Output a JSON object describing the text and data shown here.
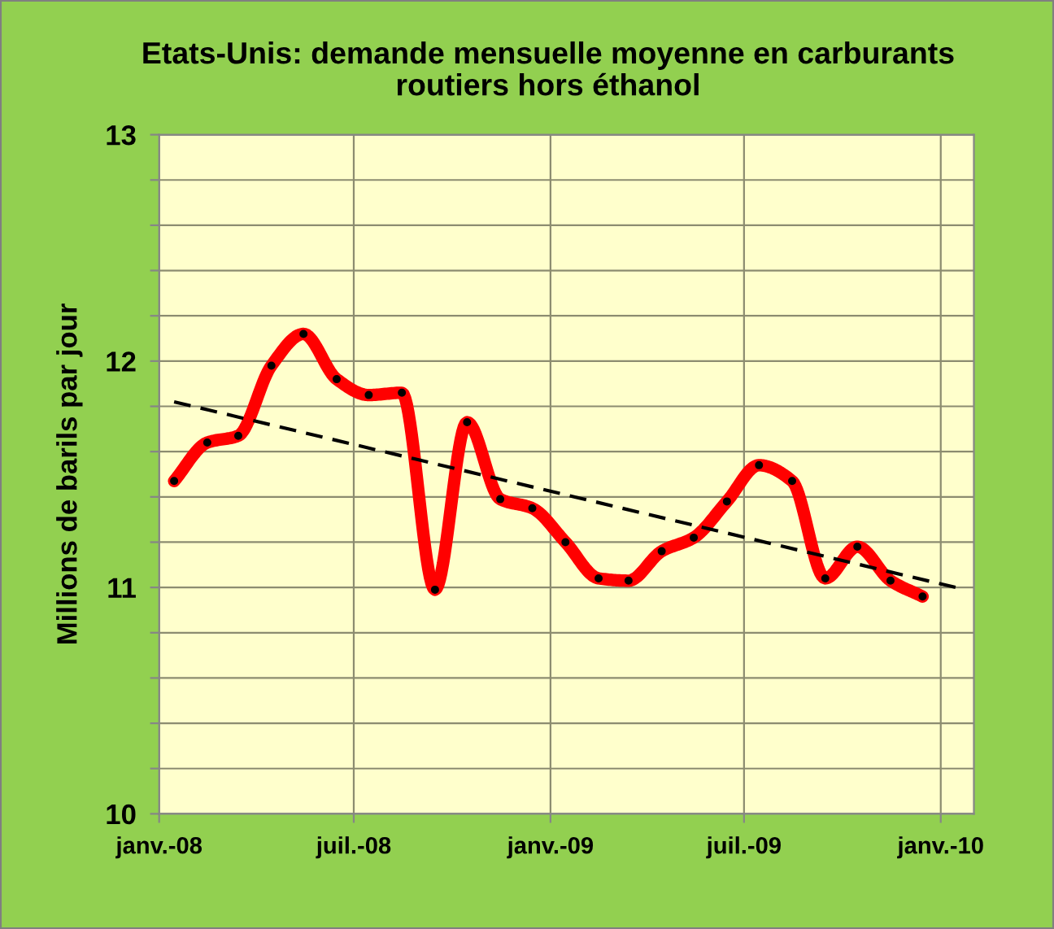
{
  "chart_data": {
    "type": "line",
    "title": "Etats-Unis: demande mensuelle moyenne en carburants\nroutiers hors éthanol",
    "ylabel": "Millions de barils par jour",
    "x": [
      "2008-01-15",
      "2008-02-15",
      "2008-03-15",
      "2008-04-15",
      "2008-05-15",
      "2008-06-15",
      "2008-07-15",
      "2008-08-15",
      "2008-09-15",
      "2008-10-15",
      "2008-11-15",
      "2008-12-15",
      "2009-01-15",
      "2009-02-15",
      "2009-03-15",
      "2009-04-15",
      "2009-05-15",
      "2009-06-15",
      "2009-07-15",
      "2009-08-15",
      "2009-09-15",
      "2009-10-15",
      "2009-11-15",
      "2009-12-15"
    ],
    "series": [
      {
        "color": "#ff0000",
        "marker": "circle",
        "line_style": "solid",
        "values": [
          11.47,
          11.64,
          11.67,
          11.98,
          12.12,
          11.92,
          11.85,
          11.86,
          10.99,
          11.73,
          11.39,
          11.35,
          11.2,
          11.04,
          11.03,
          11.16,
          11.22,
          11.38,
          11.54,
          11.47,
          11.04,
          11.18,
          11.03,
          10.96
        ]
      },
      {
        "type": "line",
        "color": "#000000",
        "marker": "none",
        "line_style": "dashed",
        "x": [
          "2008-01-15",
          "2010-01-15"
        ],
        "values": [
          11.82,
          11.0
        ]
      }
    ],
    "xlim": [
      "2008-01-01",
      "2010-02-01"
    ],
    "xticks": [
      {
        "value": "2008-01-01",
        "label": "janv.-08"
      },
      {
        "value": "2008-07-01",
        "label": "juil.-08"
      },
      {
        "value": "2009-01-01",
        "label": "janv.-09"
      },
      {
        "value": "2009-07-01",
        "label": "juil.-09"
      },
      {
        "value": "2010-01-01",
        "label": "janv.-10"
      }
    ],
    "ylim": [
      10,
      13
    ],
    "yticks": [
      10,
      {
        "value": 10.2,
        "label": null
      },
      {
        "value": 10.4,
        "label": null
      },
      {
        "value": 10.6,
        "label": null
      },
      {
        "value": 10.8,
        "label": null
      },
      11,
      {
        "value": 11.2,
        "label": null
      },
      {
        "value": 11.4,
        "label": null
      },
      {
        "value": 11.6,
        "label": null
      },
      {
        "value": 11.8,
        "label": null
      },
      12,
      {
        "value": 12.2,
        "label": null
      },
      {
        "value": 12.4,
        "label": null
      },
      {
        "value": 12.6,
        "label": null
      },
      {
        "value": 12.8,
        "label": null
      },
      13
    ],
    "grid": true
  }
}
